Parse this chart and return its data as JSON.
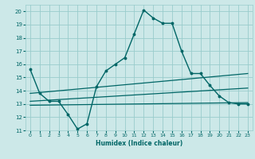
{
  "xlabel": "Humidex (Indice chaleur)",
  "xlim": [
    -0.5,
    23.5
  ],
  "ylim": [
    11,
    20.5
  ],
  "xticks": [
    0,
    1,
    2,
    3,
    4,
    5,
    6,
    7,
    8,
    9,
    10,
    11,
    12,
    13,
    14,
    15,
    16,
    17,
    18,
    19,
    20,
    21,
    22,
    23
  ],
  "yticks": [
    11,
    12,
    13,
    14,
    15,
    16,
    17,
    18,
    19,
    20
  ],
  "bg_color": "#cce8e8",
  "grid_color": "#99cccc",
  "line_color": "#006666",
  "curve1_x": [
    0,
    1,
    2,
    3,
    4,
    5,
    6,
    7,
    8,
    9,
    10,
    11,
    12,
    13,
    14,
    15,
    16,
    17,
    18,
    19,
    20,
    21,
    22,
    23
  ],
  "curve1_y": [
    15.6,
    13.8,
    13.2,
    13.2,
    12.2,
    11.1,
    11.5,
    14.3,
    15.5,
    16.0,
    16.5,
    18.3,
    20.1,
    19.5,
    19.1,
    19.1,
    17.0,
    15.3,
    15.3,
    14.4,
    13.6,
    13.1,
    13.0,
    13.0
  ],
  "trend1_x": [
    0,
    23
  ],
  "trend1_y": [
    13.8,
    15.3
  ],
  "trend2_x": [
    0,
    23
  ],
  "trend2_y": [
    13.2,
    14.2
  ],
  "trend3_x": [
    0,
    23
  ],
  "trend3_y": [
    12.9,
    13.1
  ]
}
